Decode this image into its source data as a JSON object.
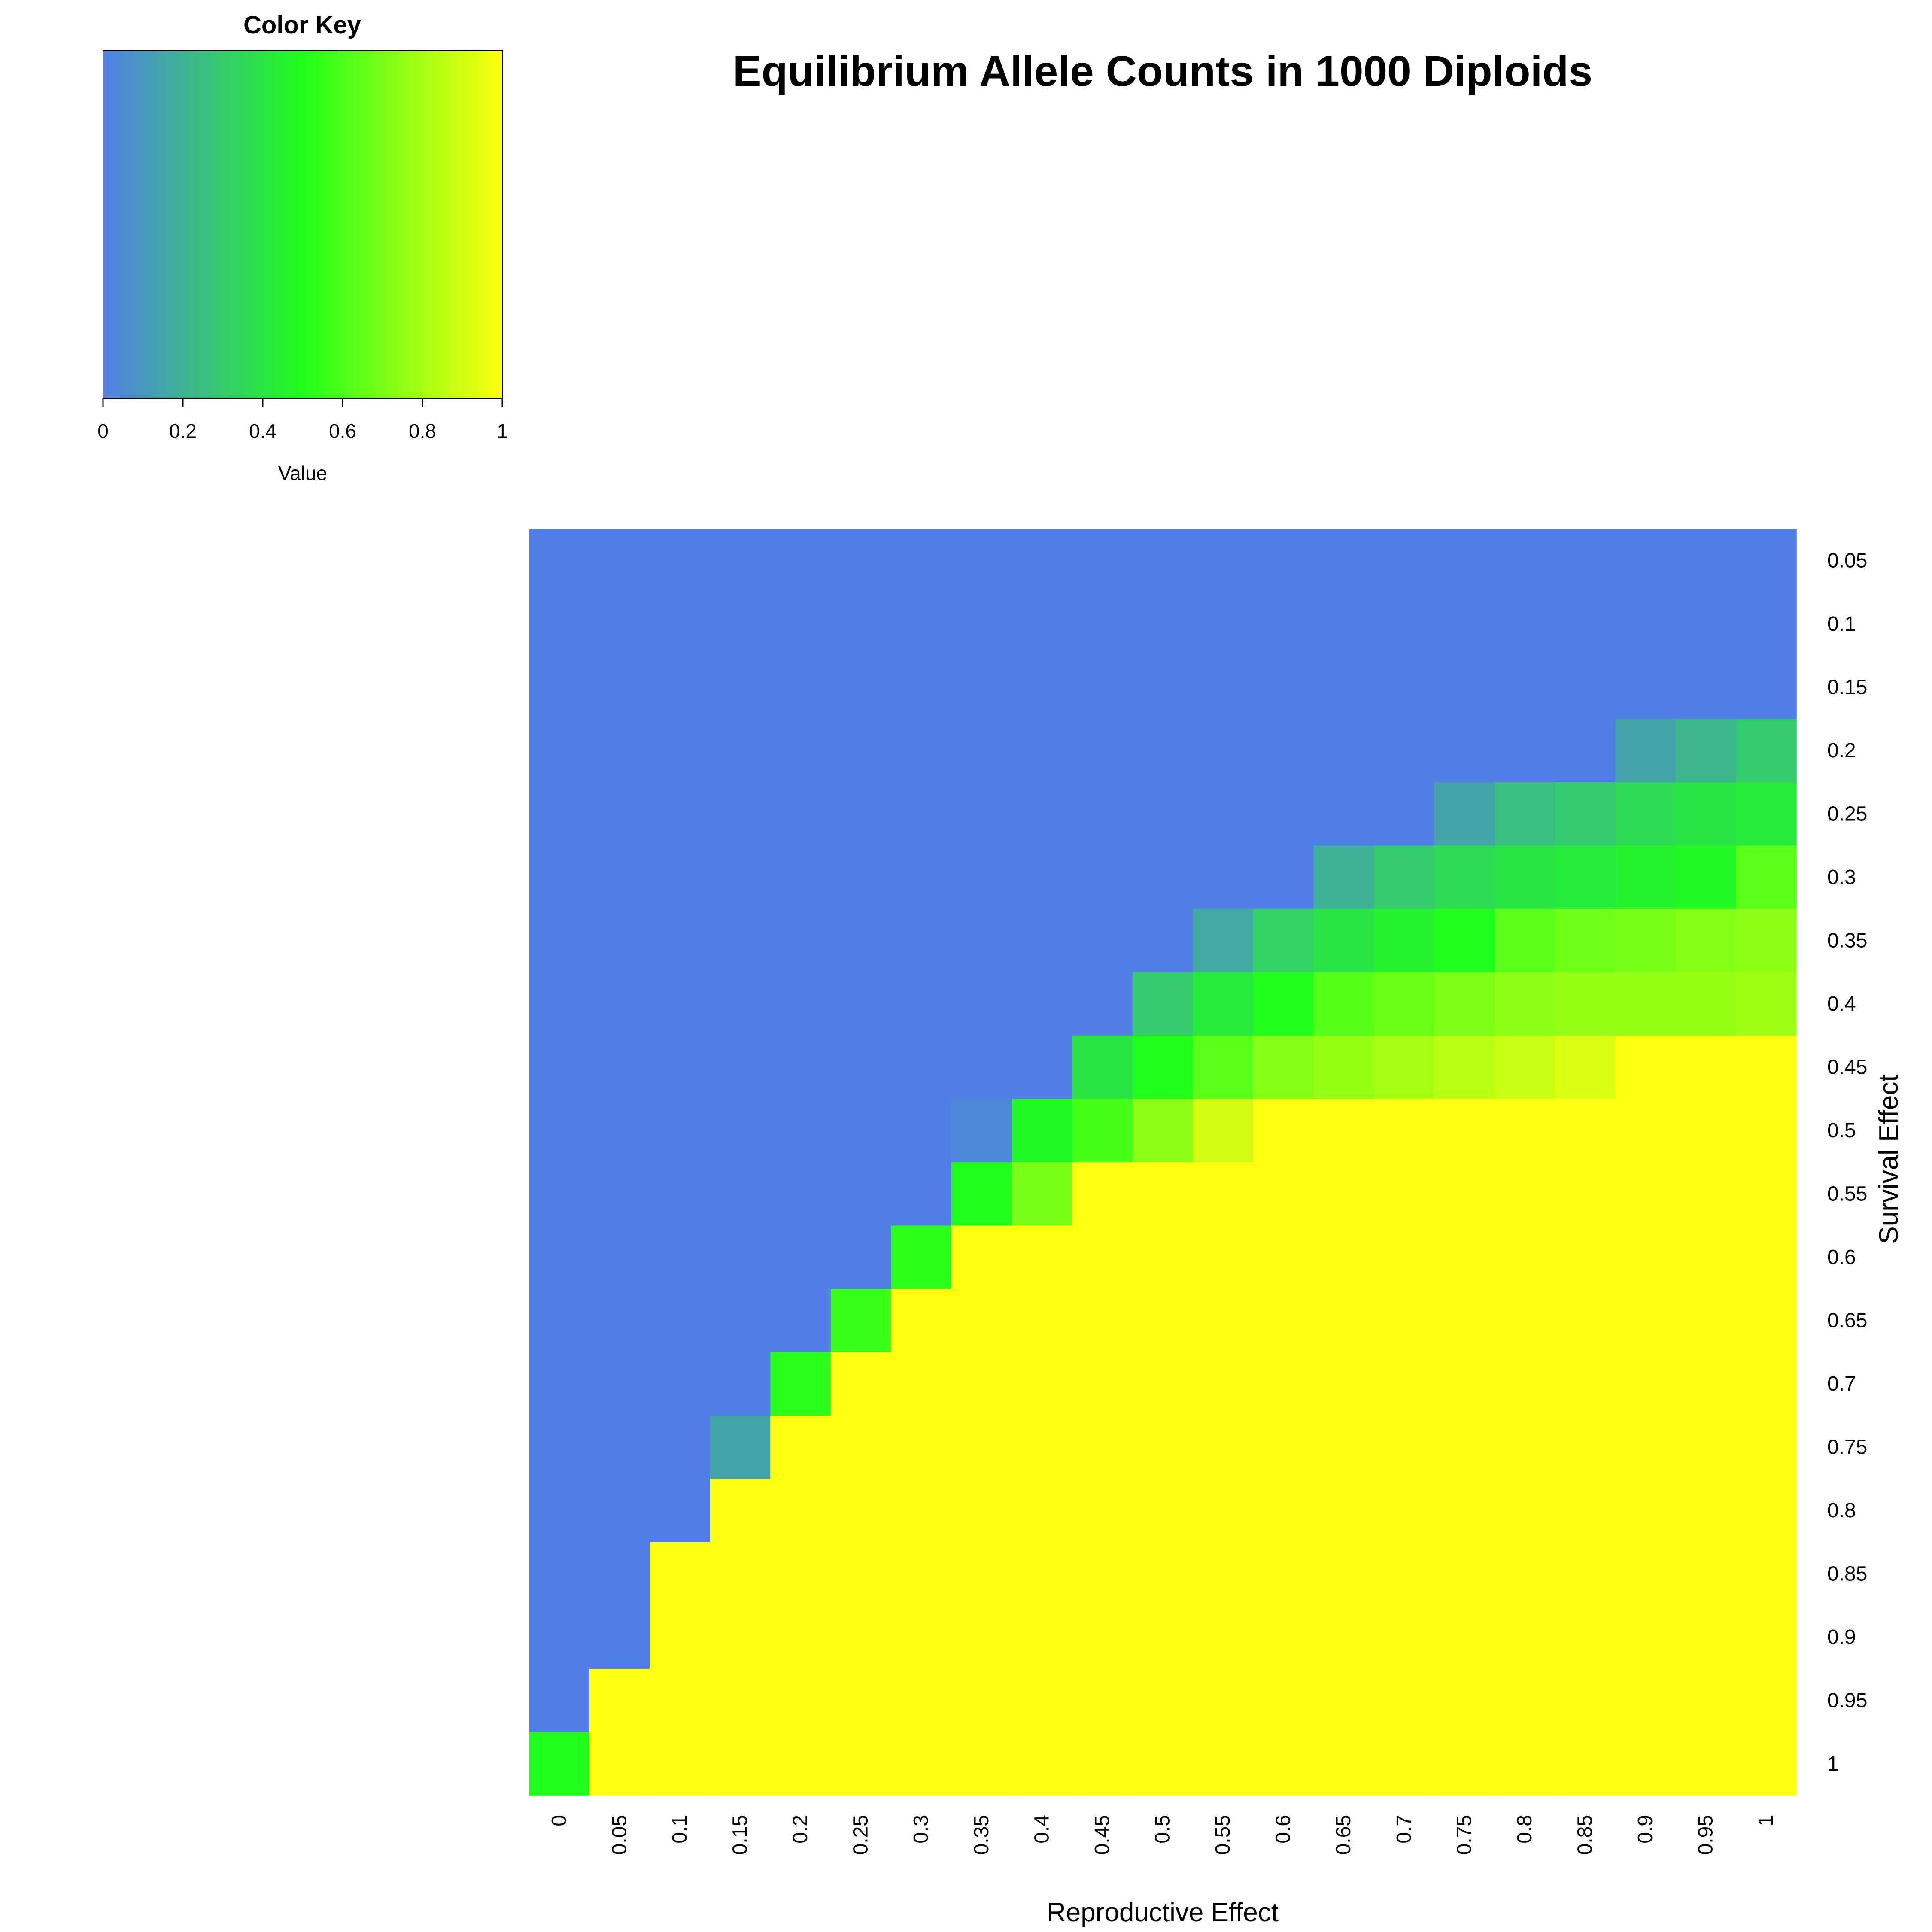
{
  "chart_data": {
    "type": "heatmap",
    "title": "Equilibrium Allele Counts in 1000 Diploids",
    "xlabel": "Reproductive Effect",
    "ylabel": "Survival Effect",
    "x": [
      "0",
      "0.05",
      "0.1",
      "0.15",
      "0.2",
      "0.25",
      "0.3",
      "0.35",
      "0.4",
      "0.45",
      "0.5",
      "0.55",
      "0.6",
      "0.65",
      "0.7",
      "0.75",
      "0.8",
      "0.85",
      "0.9",
      "0.95",
      "1"
    ],
    "y": [
      "0.05",
      "0.1",
      "0.15",
      "0.2",
      "0.25",
      "0.3",
      "0.35",
      "0.4",
      "0.45",
      "0.5",
      "0.55",
      "0.6",
      "0.65",
      "0.7",
      "0.75",
      "0.8",
      "0.85",
      "0.9",
      "0.95",
      "1"
    ],
    "values": [
      [
        0,
        0,
        0,
        0,
        0,
        0,
        0,
        0,
        0,
        0,
        0,
        0,
        0,
        0,
        0,
        0,
        0,
        0,
        0,
        0,
        0
      ],
      [
        0,
        0,
        0,
        0,
        0,
        0,
        0,
        0,
        0,
        0,
        0,
        0,
        0,
        0,
        0,
        0,
        0,
        0,
        0,
        0,
        0
      ],
      [
        0,
        0,
        0,
        0,
        0,
        0,
        0,
        0,
        0,
        0,
        0,
        0,
        0,
        0,
        0,
        0,
        0,
        0,
        0,
        0,
        0
      ],
      [
        0,
        0,
        0,
        0,
        0,
        0,
        0,
        0,
        0,
        0,
        0,
        0,
        0,
        0,
        0,
        0,
        0,
        0,
        0.15,
        0.22,
        0.3
      ],
      [
        0,
        0,
        0,
        0,
        0,
        0,
        0,
        0,
        0,
        0,
        0,
        0,
        0,
        0,
        0,
        0.15,
        0.25,
        0.3,
        0.36,
        0.4,
        0.42
      ],
      [
        0,
        0,
        0,
        0,
        0,
        0,
        0,
        0,
        0,
        0,
        0,
        0,
        0,
        0.2,
        0.3,
        0.36,
        0.4,
        0.42,
        0.45,
        0.48,
        0.63
      ],
      [
        0,
        0,
        0,
        0,
        0,
        0,
        0,
        0,
        0,
        0,
        0,
        0.17,
        0.32,
        0.4,
        0.45,
        0.5,
        0.63,
        0.68,
        0.7,
        0.72,
        0.74
      ],
      [
        0,
        0,
        0,
        0,
        0,
        0,
        0,
        0,
        0,
        0,
        0.3,
        0.42,
        0.5,
        0.62,
        0.67,
        0.71,
        0.74,
        0.76,
        0.76,
        0.76,
        0.78
      ],
      [
        0,
        0,
        0,
        0,
        0,
        0,
        0,
        0,
        0,
        0.4,
        0.5,
        0.63,
        0.72,
        0.76,
        0.8,
        0.84,
        0.88,
        0.92,
        1,
        1,
        1
      ],
      [
        0,
        0,
        0,
        0,
        0,
        0,
        0,
        0.04,
        0.48,
        0.58,
        0.74,
        0.9,
        1,
        1,
        1,
        1,
        1,
        1,
        1,
        1,
        1
      ],
      [
        0,
        0,
        0,
        0,
        0,
        0,
        0,
        0.5,
        0.7,
        1,
        1,
        1,
        1,
        1,
        1,
        1,
        1,
        1,
        1,
        1,
        1
      ],
      [
        0,
        0,
        0,
        0,
        0,
        0,
        0.53,
        1,
        1,
        1,
        1,
        1,
        1,
        1,
        1,
        1,
        1,
        1,
        1,
        1,
        1
      ],
      [
        0,
        0,
        0,
        0,
        0,
        0.56,
        1,
        1,
        1,
        1,
        1,
        1,
        1,
        1,
        1,
        1,
        1,
        1,
        1,
        1,
        1
      ],
      [
        0,
        0,
        0,
        0,
        0.52,
        1,
        1,
        1,
        1,
        1,
        1,
        1,
        1,
        1,
        1,
        1,
        1,
        1,
        1,
        1,
        1
      ],
      [
        0,
        0,
        0,
        0.15,
        1,
        1,
        1,
        1,
        1,
        1,
        1,
        1,
        1,
        1,
        1,
        1,
        1,
        1,
        1,
        1,
        1
      ],
      [
        0,
        0,
        0,
        1,
        1,
        1,
        1,
        1,
        1,
        1,
        1,
        1,
        1,
        1,
        1,
        1,
        1,
        1,
        1,
        1,
        1
      ],
      [
        0,
        0,
        1,
        1,
        1,
        1,
        1,
        1,
        1,
        1,
        1,
        1,
        1,
        1,
        1,
        1,
        1,
        1,
        1,
        1,
        1
      ],
      [
        0,
        0,
        1,
        1,
        1,
        1,
        1,
        1,
        1,
        1,
        1,
        1,
        1,
        1,
        1,
        1,
        1,
        1,
        1,
        1,
        1
      ],
      [
        0,
        1,
        1,
        1,
        1,
        1,
        1,
        1,
        1,
        1,
        1,
        1,
        1,
        1,
        1,
        1,
        1,
        1,
        1,
        1,
        1
      ],
      [
        0.5,
        1,
        1,
        1,
        1,
        1,
        1,
        1,
        1,
        1,
        1,
        1,
        1,
        1,
        1,
        1,
        1,
        1,
        1,
        1,
        1
      ]
    ],
    "color_scale": {
      "stops": [
        "#527fe6",
        "#1fff1a",
        "#ffff0f"
      ],
      "domain": [
        0,
        1
      ]
    },
    "color_key": {
      "title": "Color Key",
      "label": "Value",
      "ticks": [
        "0",
        "0.2",
        "0.4",
        "0.6",
        "0.8",
        "1"
      ]
    }
  }
}
